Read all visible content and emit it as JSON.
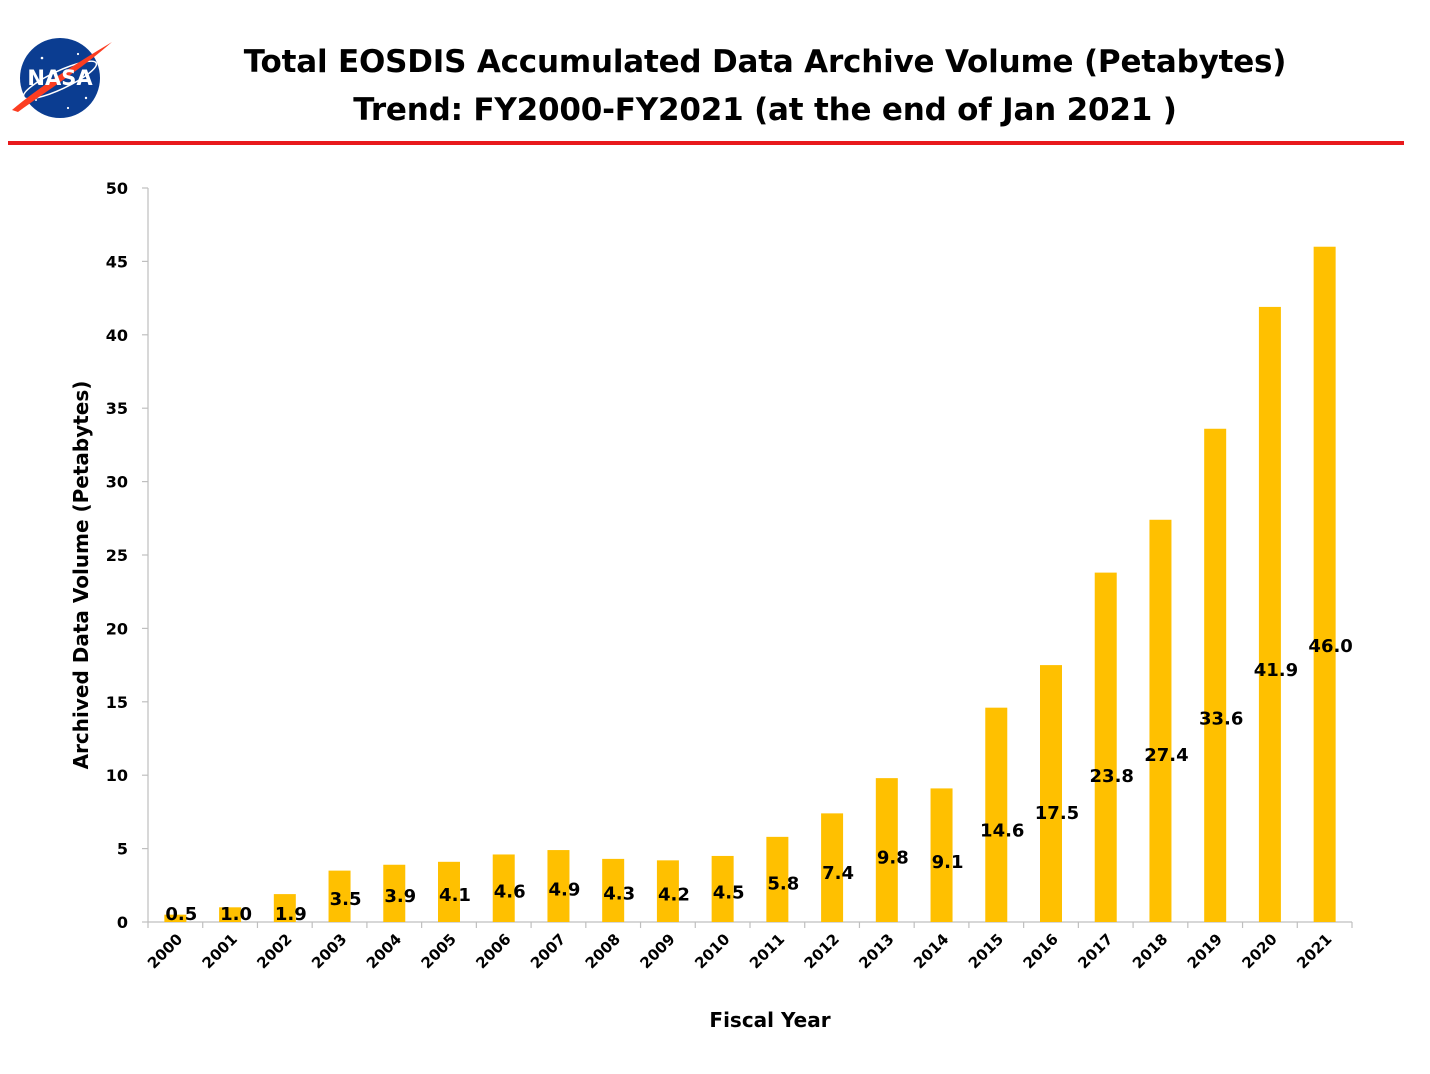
{
  "header": {
    "logo_text": "NASA",
    "title_line1": "Total EOSDIS Accumulated Data Archive Volume (Petabytes)",
    "title_line2": "Trend: FY2000-FY2021 (at the end of Jan 2021 )"
  },
  "colors": {
    "bar": "#FFC000",
    "rule": "#E8191C",
    "axis": "#BFBFBF",
    "logo_blue": "#0B3D91",
    "logo_red": "#FC3D21"
  },
  "chart_data": {
    "type": "bar",
    "title": "Total EOSDIS Accumulated Data Archive Volume (Petabytes)",
    "subtitle": "Trend: FY2000-FY2021 (at the end of Jan 2021 )",
    "xlabel": "Fiscal Year",
    "ylabel": "Archived Data Volume (Petabytes)",
    "ylim": [
      0,
      50
    ],
    "yticks": [
      0,
      5,
      10,
      15,
      20,
      25,
      30,
      35,
      40,
      45,
      50
    ],
    "grid": false,
    "legend": "none",
    "categories": [
      "2000",
      "2001",
      "2002",
      "2003",
      "2004",
      "2005",
      "2006",
      "2007",
      "2008",
      "2009",
      "2010",
      "2011",
      "2012",
      "2013",
      "2014",
      "2015",
      "2016",
      "2017",
      "2018",
      "2019",
      "2020",
      "2021"
    ],
    "values": [
      0.5,
      1.0,
      1.9,
      3.5,
      3.9,
      4.1,
      4.6,
      4.9,
      4.3,
      4.2,
      4.5,
      5.8,
      7.4,
      9.8,
      9.1,
      14.6,
      17.5,
      23.8,
      27.4,
      33.6,
      41.9,
      46.0
    ],
    "data_labels": [
      "0.5",
      "1.0",
      "1.9",
      "3.5",
      "3.9",
      "4.1",
      "4.6",
      "4.9",
      "4.3",
      "4.2",
      "4.5",
      "5.8",
      "7.4",
      "9.8",
      "9.1",
      "14.6",
      "17.5",
      "23.8",
      "27.4",
      "33.6",
      "41.9",
      "46.0"
    ]
  }
}
